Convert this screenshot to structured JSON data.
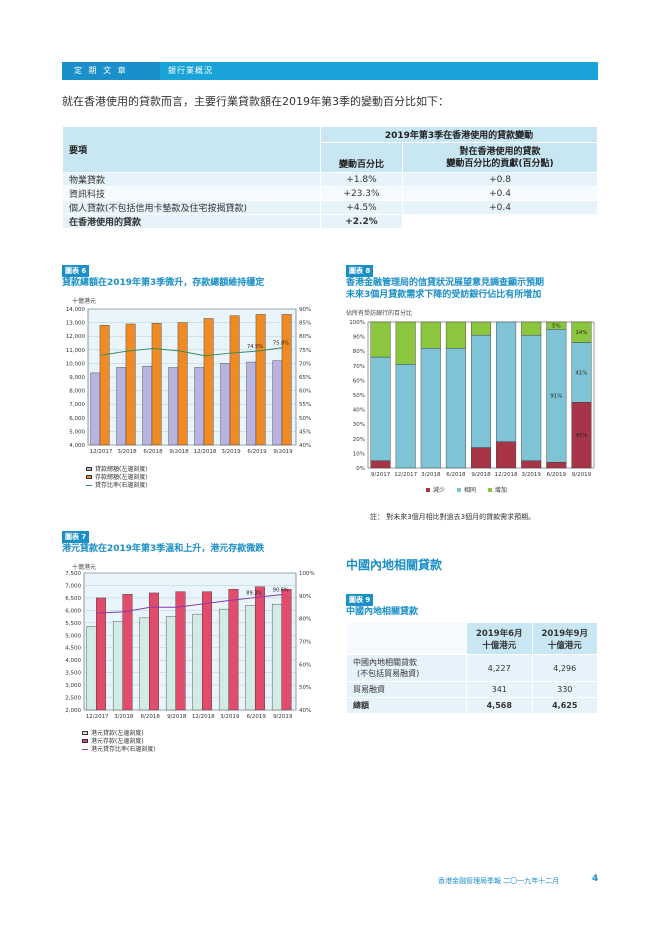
{
  "header": {
    "section": "定 期 文 章",
    "topic": "銀行業概況"
  },
  "intro": "就在香港使用的貸款而言，主要行業貸款額在2019年第3季的變動百分比如下：",
  "table1": {
    "col_item": "要項",
    "col_group": "2019年第3季在香港使用的貸款變動",
    "col_change": "變動百分比",
    "col_contrib_1": "對在香港使用的貸款",
    "col_contrib_2": "變動百分比的貢獻(百分點)",
    "rows": [
      {
        "item": "物業貸款",
        "change": "+1.8%",
        "contrib": "+0.8"
      },
      {
        "item": "資訊科技",
        "change": "+23.3%",
        "contrib": "+0.4"
      },
      {
        "item": "個人貸款(不包括信用卡墊款及住宅按揭貸款)",
        "change": "+4.5%",
        "contrib": "+0.4"
      }
    ],
    "total": {
      "item": "在香港使用的貸款",
      "change": "+2.2%",
      "contrib": ""
    }
  },
  "fig6": {
    "tag": "圖表 6",
    "title": "貸款總額在2019年第3季微升，存款總額維持穩定",
    "unit": "十億港元",
    "legend": [
      "貸款總額(左邊刻度)",
      "存款總額(左邊刻度)",
      "貸存比率(右邊刻度)"
    ]
  },
  "fig7": {
    "tag": "圖表 7",
    "title": "港元貸款在2019年第3季溫和上升，港元存款微跌",
    "unit": "十億港元",
    "legend": [
      "港元貸款(左邊刻度)",
      "港元存款(左邊刻度)",
      "港元貸存比率(右邊刻度)"
    ]
  },
  "fig8": {
    "tag": "圖表 8",
    "title_1": "香港金融管理局的信貸狀況展望意見調查顯示預期",
    "title_2": "未來3個月貸款需求下降的受訪銀行佔比有所增加",
    "unit": "佔所有受訪銀行的百分比",
    "legend": [
      "減少",
      "相同",
      "增加"
    ],
    "note": "註：  對未來3個月相比對過去3個月的貸款需求預期。"
  },
  "mainland": {
    "section_title": "中國內地相關貸款",
    "tag": "圖表 9",
    "title": "中國內地相關貸款",
    "col1_1": "2019年6月",
    "col1_2": "十億港元",
    "col2_1": "2019年9月",
    "col2_2": "十億港元",
    "rows": [
      {
        "label_1": "中國內地相關貸款",
        "label_2": "(不包括貿易融資)",
        "jun": "4,227",
        "sep": "4,296"
      },
      {
        "label_1": "貿易融資",
        "label_2": "",
        "jun": "341",
        "sep": "330"
      }
    ],
    "total": {
      "label": "總額",
      "jun": "4,568",
      "sep": "4,625"
    }
  },
  "footer": {
    "publication": "香港金融管理局季報  二〇一九年十二月",
    "page": "4"
  },
  "colors": {
    "blue": "#1a8fc8",
    "loan6": "#b9b3e0",
    "dep6": "#f08a24",
    "ratio6": "#3a8a5a",
    "loan7": "#d2ece5",
    "dep7": "#e24c6c",
    "ratio7": "#8a3aa8",
    "dec": "#a83448",
    "same": "#7fc4d6",
    "inc": "#8cc63f"
  },
  "chart_data": [
    {
      "id": "fig6",
      "type": "bar",
      "categories": [
        "12/2017",
        "3/2018",
        "6/2018",
        "9/2018",
        "12/2018",
        "3/2019",
        "6/2019",
        "9/2019"
      ],
      "series": [
        {
          "name": "貸款總額(左邊刻度)",
          "values": [
            9300,
            9700,
            9800,
            9700,
            9700,
            10000,
            10100,
            10200
          ]
        },
        {
          "name": "存款總額(左邊刻度)",
          "values": [
            12800,
            12900,
            12950,
            13000,
            13300,
            13500,
            13600,
            13600
          ]
        },
        {
          "name": "貸存比率(右邊刻度)",
          "axis": "right",
          "values": [
            73.0,
            74.5,
            75.5,
            74.6,
            72.8,
            73.8,
            74.5,
            75.8
          ]
        }
      ],
      "ylim": [
        4000,
        14000
      ],
      "y2lim": [
        40,
        90
      ],
      "yticks": [
        "4,000",
        "5,000",
        "6,000",
        "7,000",
        "8,000",
        "9,000",
        "10,000",
        "11,000",
        "12,000",
        "13,000",
        "14,000"
      ],
      "y2ticks": [
        "40%",
        "45%",
        "50%",
        "55%",
        "60%",
        "65%",
        "70%",
        "75%",
        "80%",
        "85%",
        "90%"
      ],
      "annotations": [
        {
          "index": 6,
          "text": "74.5%"
        },
        {
          "index": 7,
          "text": "75.8%"
        }
      ]
    },
    {
      "id": "fig7",
      "type": "bar",
      "categories": [
        "12/2017",
        "3/2018",
        "6/2018",
        "9/2018",
        "12/2018",
        "3/2019",
        "6/2019",
        "9/2019"
      ],
      "series": [
        {
          "name": "港元貸款(左邊刻度)",
          "values": [
            5350,
            5550,
            5700,
            5750,
            5850,
            6050,
            6200,
            6250
          ]
        },
        {
          "name": "港元存款(左邊刻度)",
          "values": [
            6500,
            6650,
            6700,
            6750,
            6750,
            6850,
            6950,
            6850
          ]
        },
        {
          "name": "港元貸存比率(右邊刻度)",
          "axis": "right",
          "values": [
            82.5,
            83.0,
            85.0,
            85.0,
            86.5,
            88.0,
            89.3,
            90.6
          ]
        }
      ],
      "ylim": [
        2000,
        7500
      ],
      "y2lim": [
        40,
        100
      ],
      "yticks": [
        "2,000",
        "2,500",
        "3,000",
        "3,500",
        "4,000",
        "4,500",
        "5,000",
        "5,500",
        "6,000",
        "6,500",
        "7,000",
        "7,500"
      ],
      "y2ticks": [
        "40%",
        "50%",
        "60%",
        "70%",
        "80%",
        "90%",
        "100%"
      ],
      "annotations": [
        {
          "index": 6,
          "text": "89.3%"
        },
        {
          "index": 7,
          "text": "90.6%"
        }
      ]
    },
    {
      "id": "fig8",
      "type": "bar",
      "stacked": true,
      "categories": [
        "9/2017",
        "12/2017",
        "3/2018",
        "6/2018",
        "9/2018",
        "12/2018",
        "3/2019",
        "6/2019",
        "9/2019"
      ],
      "series": [
        {
          "name": "減少",
          "values": [
            5,
            0,
            0,
            0,
            14,
            18,
            5,
            4,
            45
          ]
        },
        {
          "name": "相同",
          "values": [
            71,
            71,
            82,
            82,
            77,
            82,
            86,
            91,
            41
          ]
        },
        {
          "name": "增加",
          "values": [
            24,
            29,
            18,
            18,
            9,
            0,
            9,
            5,
            14
          ]
        }
      ],
      "ylim": [
        0,
        100
      ],
      "yticks": [
        "0%",
        "10%",
        "20%",
        "30%",
        "40%",
        "50%",
        "60%",
        "70%",
        "80%",
        "90%",
        "100%"
      ],
      "annotations": [
        {
          "index": 7,
          "series": 2,
          "text": "5%"
        },
        {
          "index": 7,
          "series": 1,
          "text": "91%"
        },
        {
          "index": 8,
          "series": 2,
          "text": "14%"
        },
        {
          "index": 8,
          "series": 1,
          "text": "41%"
        },
        {
          "index": 8,
          "series": 0,
          "text": "45%"
        }
      ]
    }
  ]
}
